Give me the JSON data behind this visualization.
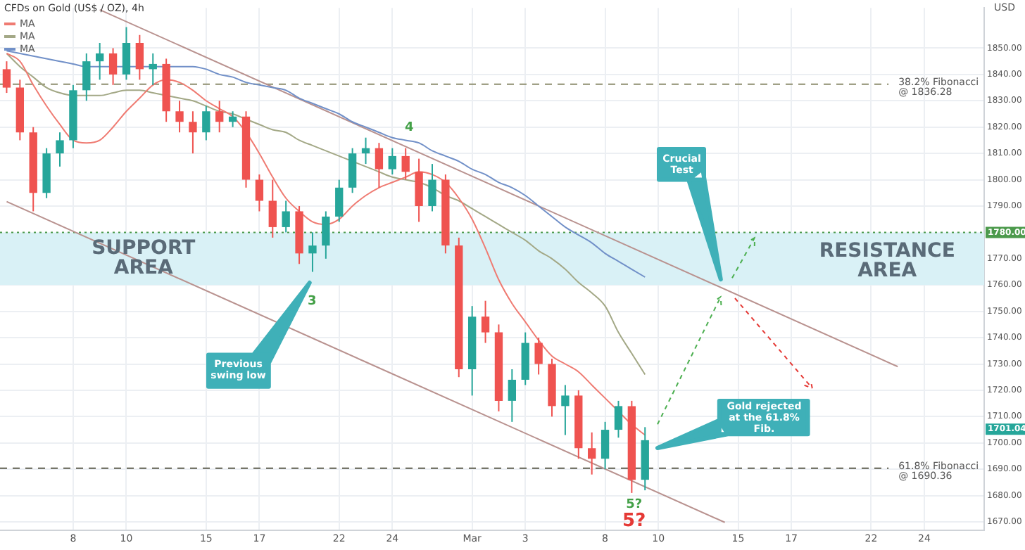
{
  "chart_data": {
    "type": "candlestick",
    "title": "CFDs on Gold (US$ / OZ), 4h",
    "ylabel": "USD",
    "categories": [
      null,
      null,
      null,
      null,
      null,
      "8",
      null,
      null,
      null,
      "10",
      null,
      null,
      null,
      null,
      null,
      "15",
      null,
      null,
      null,
      "17",
      null,
      null,
      null,
      null,
      null,
      "22",
      null,
      null,
      null,
      "24",
      null,
      null,
      null,
      null,
      null,
      "Mar",
      null,
      null,
      null,
      "3",
      null,
      null,
      null,
      null,
      null,
      "8",
      null,
      null,
      null,
      "10",
      null,
      null,
      null,
      null,
      null,
      "15",
      null,
      null,
      null,
      "17",
      null,
      null,
      null,
      null,
      null,
      "22",
      null,
      null,
      null,
      "24",
      null,
      null,
      null,
      null
    ],
    "ohlc": [
      [
        1842,
        1845,
        1833,
        1835
      ],
      [
        1835,
        1838,
        1815,
        1818
      ],
      [
        1818,
        1820,
        1788,
        1795
      ],
      [
        1795,
        1812,
        1793,
        1810
      ],
      [
        1810,
        1818,
        1805,
        1815
      ],
      [
        1815,
        1836,
        1812,
        1834
      ],
      [
        1834,
        1848,
        1830,
        1845
      ],
      [
        1845,
        1852,
        1838,
        1848
      ],
      [
        1848,
        1850,
        1836,
        1840
      ],
      [
        1840,
        1858,
        1838,
        1852
      ],
      [
        1852,
        1855,
        1838,
        1842
      ],
      [
        1842,
        1848,
        1836,
        1844
      ],
      [
        1844,
        1846,
        1822,
        1826
      ],
      [
        1826,
        1830,
        1818,
        1822
      ],
      [
        1822,
        1826,
        1810,
        1818
      ],
      [
        1818,
        1828,
        1815,
        1826
      ],
      [
        1826,
        1830,
        1818,
        1822
      ],
      [
        1822,
        1826,
        1820,
        1824
      ],
      [
        1824,
        1826,
        1797,
        1800
      ],
      [
        1800,
        1802,
        1788,
        1792
      ],
      [
        1792,
        1800,
        1778,
        1782
      ],
      [
        1782,
        1792,
        1780,
        1788
      ],
      [
        1788,
        1790,
        1768,
        1772
      ],
      [
        1772,
        1780,
        1765,
        1775
      ],
      [
        1775,
        1788,
        1770,
        1786
      ],
      [
        1786,
        1800,
        1784,
        1797
      ],
      [
        1797,
        1812,
        1795,
        1810
      ],
      [
        1810,
        1816,
        1806,
        1812
      ],
      [
        1812,
        1814,
        1797,
        1804
      ],
      [
        1804,
        1812,
        1802,
        1809
      ],
      [
        1809,
        1812,
        1800,
        1803
      ],
      [
        1803,
        1808,
        1784,
        1790
      ],
      [
        1790,
        1806,
        1788,
        1800
      ],
      [
        1800,
        1802,
        1772,
        1775
      ],
      [
        1775,
        1778,
        1725,
        1728
      ],
      [
        1728,
        1752,
        1718,
        1748
      ],
      [
        1748,
        1754,
        1738,
        1742
      ],
      [
        1742,
        1745,
        1712,
        1716
      ],
      [
        1716,
        1728,
        1708,
        1724
      ],
      [
        1724,
        1742,
        1722,
        1738
      ],
      [
        1738,
        1740,
        1726,
        1730
      ],
      [
        1730,
        1732,
        1710,
        1714
      ],
      [
        1714,
        1722,
        1703,
        1718
      ],
      [
        1718,
        1720,
        1694,
        1698
      ],
      [
        1698,
        1704,
        1688,
        1694
      ],
      [
        1694,
        1708,
        1690,
        1705
      ],
      [
        1705,
        1716,
        1702,
        1714
      ],
      [
        1714,
        1716,
        1681,
        1686
      ],
      [
        1686,
        1706,
        1682,
        1701.04
      ],
      null,
      null,
      null,
      null,
      null,
      null,
      null,
      null,
      null,
      null,
      null,
      null,
      null,
      null,
      null,
      null,
      null,
      null,
      null,
      null,
      null,
      null,
      null,
      null,
      null
    ],
    "series": [
      {
        "name": "MA",
        "type": "line",
        "color": "#ef7b72",
        "values": [
          1848,
          1845,
          1836,
          1828,
          1821,
          1815,
          1814,
          1815,
          1820,
          1826,
          1831,
          1836,
          1838,
          1837,
          1834,
          1830,
          1827,
          1824,
          1818,
          1810,
          1801,
          1793,
          1788,
          1784,
          1783,
          1785,
          1790,
          1794,
          1797,
          1799,
          1801,
          1803,
          1802,
          1799,
          1793,
          1785,
          1774,
          1762,
          1753,
          1746,
          1739,
          1733,
          1730,
          1727,
          1722,
          1717,
          1712,
          1707,
          1703,
          null,
          null,
          null,
          null,
          null,
          null,
          null,
          null,
          null,
          null,
          null,
          null,
          null,
          null,
          null,
          null,
          null,
          null,
          null,
          null,
          null,
          null,
          null,
          null,
          null
        ]
      },
      {
        "name": "MA",
        "type": "line",
        "color": "#a3a886",
        "values": [
          1848,
          1843,
          1839,
          1835,
          1833,
          1832,
          1832,
          1832,
          1833,
          1834,
          1834,
          1833,
          1832,
          1831,
          1830,
          1828,
          1826,
          1825,
          1823,
          1821,
          1819,
          1818,
          1815,
          1813,
          1811,
          1809,
          1807,
          1805,
          1803,
          1801,
          1800,
          1799,
          1797,
          1794,
          1792,
          1789,
          1786,
          1783,
          1780,
          1777,
          1773,
          1770,
          1766,
          1761,
          1757,
          1752,
          1742,
          1734,
          1726,
          null,
          null,
          null,
          null,
          null,
          null,
          null,
          null,
          null,
          null,
          null,
          null,
          null,
          null,
          null,
          null,
          null,
          null,
          null,
          null,
          null,
          null,
          null,
          null,
          null
        ]
      },
      {
        "name": "MA",
        "type": "line",
        "color": "#7190c8",
        "values": [
          1849,
          1848,
          1847,
          1846,
          1845,
          1844,
          1843,
          1843,
          1843,
          1843,
          1843,
          1843,
          1843,
          1843,
          1843,
          1842,
          1840,
          1839,
          1837,
          1836,
          1835,
          1834,
          1831,
          1829,
          1827,
          1825,
          1822,
          1820,
          1818,
          1816,
          1815,
          1814,
          1811,
          1809,
          1807,
          1804,
          1802,
          1799,
          1797,
          1794,
          1790,
          1786,
          1782,
          1779,
          1776,
          1772,
          1769,
          1766,
          1763,
          null,
          null,
          null,
          null,
          null,
          null,
          null,
          null,
          null,
          null,
          null,
          null,
          null,
          null,
          null,
          null,
          null,
          null,
          null,
          null,
          null,
          null,
          null,
          null,
          null
        ]
      },
      {
        "type": "line",
        "color": "#b9928f",
        "values": [
          null,
          null,
          null,
          null,
          null,
          null,
          null,
          1864.6,
          null,
          null,
          null,
          null,
          null,
          null,
          null,
          null,
          null,
          null,
          null,
          null,
          null,
          null,
          null,
          null,
          null,
          null,
          null,
          null,
          null,
          null,
          null,
          null,
          null,
          null,
          null,
          null,
          null,
          null,
          null,
          null,
          null,
          null,
          null,
          null,
          null,
          null,
          null,
          null,
          null,
          null,
          null,
          null,
          null,
          null,
          null,
          null,
          null,
          null,
          null,
          null,
          null,
          null,
          null,
          null,
          null,
          null,
          null,
          1729,
          null,
          null,
          null,
          null,
          null,
          null
        ]
      },
      {
        "type": "line",
        "color": "#b9928f",
        "values": [
          1791.7,
          null,
          null,
          null,
          null,
          null,
          null,
          null,
          null,
          null,
          null,
          null,
          null,
          null,
          null,
          null,
          null,
          null,
          null,
          null,
          null,
          null,
          null,
          null,
          null,
          null,
          null,
          null,
          null,
          null,
          null,
          null,
          null,
          null,
          null,
          null,
          null,
          null,
          null,
          null,
          null,
          null,
          null,
          null,
          null,
          null,
          null,
          null,
          null,
          null,
          null,
          null,
          null,
          null,
          1669.8,
          null,
          null,
          null,
          null,
          null,
          null,
          null,
          null,
          null,
          null,
          null,
          null,
          null,
          null,
          null,
          null,
          null,
          null,
          null
        ]
      }
    ],
    "ylim": [
      1666.8,
      1865.3
    ],
    "yticks": [
      {
        "value": 1670,
        "label": "1670.00"
      },
      {
        "value": 1680,
        "label": "1680.00"
      },
      {
        "value": 1690,
        "label": "1690.00"
      },
      {
        "value": 1700,
        "label": "1700.00"
      },
      {
        "value": 1710,
        "label": "1710.00"
      },
      {
        "value": 1720,
        "label": "1720.00"
      },
      {
        "value": 1730,
        "label": "1730.00"
      },
      {
        "value": 1740,
        "label": "1740.00"
      },
      {
        "value": 1750,
        "label": "1750.00"
      },
      {
        "value": 1760,
        "label": "1760.00"
      },
      {
        "value": 1770,
        "label": "1770.00"
      },
      {
        "value": 1780,
        "label": null
      },
      {
        "value": 1790,
        "label": "1790.00"
      },
      {
        "value": 1800,
        "label": "1800.00"
      },
      {
        "value": 1810,
        "label": "1810.00"
      },
      {
        "value": 1820,
        "label": "1820.00"
      },
      {
        "value": 1830,
        "label": "1830.00"
      },
      {
        "value": 1840,
        "label": "1840.00"
      },
      {
        "value": 1850,
        "label": "1850.00"
      }
    ],
    "ref_lines": [
      {
        "axis": "y",
        "value": 1836.28,
        "label": "38.2% Fibonacci @ 1836.28",
        "color": "#8f8f6f",
        "line_style": "dashed"
      },
      {
        "axis": "y",
        "value": 1690.36,
        "label": "61.8% Fibonacci @ 1690.36",
        "color": "#5f5f50",
        "line_style": "dashed"
      },
      {
        "axis": "y",
        "value": 1780,
        "label": "1780.00",
        "color": "#4c9a4c",
        "line_style": "dotted"
      }
    ],
    "bands": [
      {
        "axis": "y",
        "from": 1760,
        "to": 1780,
        "label": "SUPPORT AREA",
        "color": "#d9f1f6"
      }
    ],
    "annotations": [
      "Previous swing low",
      "Crucial Test",
      "Gold rejected at the 61.8% Fib.",
      {
        "text": "3",
        "y": 1765
      },
      {
        "text": "4",
        "y": 1816
      },
      {
        "text": "5?",
        "y": 1681
      },
      {
        "text": "5?",
        "y": 1681
      },
      "RESISTANCE AREA",
      "1701.04"
    ],
    "grid": true,
    "legend": "top left",
    "marker": "none"
  }
}
